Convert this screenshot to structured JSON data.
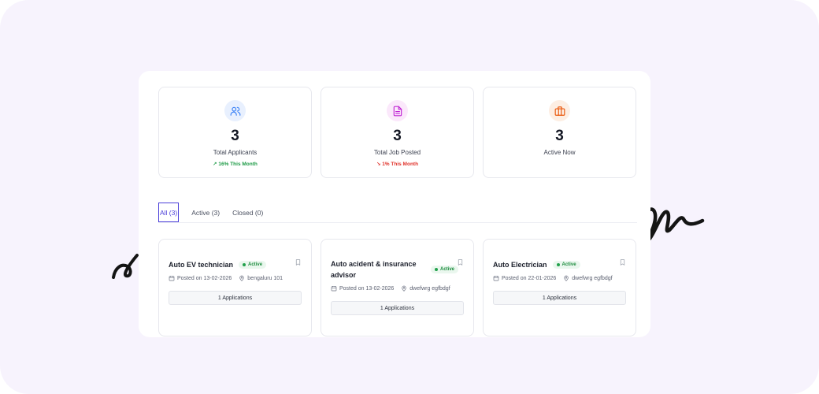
{
  "stats": [
    {
      "value": "3",
      "label": "Total Applicants",
      "trend": "↗ 16% This Month",
      "trend_dir": "up",
      "icon": "users-icon",
      "color": "#3b82f6",
      "bg": "#e8f0fe"
    },
    {
      "value": "3",
      "label": "Total Job Posted",
      "trend": "↘ 1% This Month",
      "trend_dir": "down",
      "icon": "file-icon",
      "color": "#c026d3",
      "bg": "#fbe8fb"
    },
    {
      "value": "3",
      "label": "Active Now",
      "trend": "",
      "trend_dir": "",
      "icon": "briefcase-icon",
      "color": "#ea580c",
      "bg": "#fdeee3"
    }
  ],
  "tabs": [
    {
      "label": "All (3)",
      "active": true
    },
    {
      "label": "Active (3)",
      "active": false
    },
    {
      "label": "Closed (0)",
      "active": false
    }
  ],
  "jobs": [
    {
      "title": "Auto EV technician",
      "status": "Active",
      "posted": "Posted on 13-02-2026",
      "location": "bengaluru 101",
      "applications": "1 Applications"
    },
    {
      "title": "Auto acident & insurance advisor",
      "status": "Active",
      "posted": "Posted on 13-02-2026",
      "location": "dwefwrg egfbdgf",
      "applications": "1 Applications"
    },
    {
      "title": "Auto Electrician",
      "status": "Active",
      "posted": "Posted on 22-01-2026",
      "location": "dwefwrg egfbdgf",
      "applications": "1 Applications"
    }
  ]
}
